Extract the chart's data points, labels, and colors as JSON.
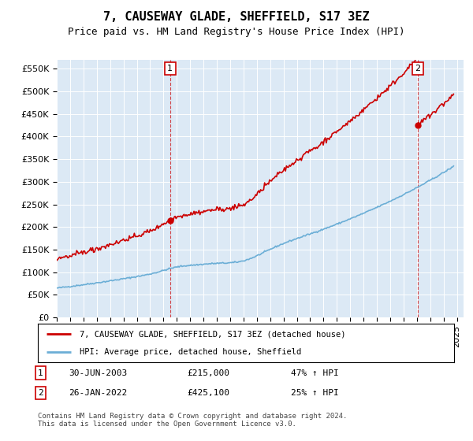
{
  "title": "7, CAUSEWAY GLADE, SHEFFIELD, S17 3EZ",
  "subtitle": "Price paid vs. HM Land Registry's House Price Index (HPI)",
  "ylim": [
    0,
    570000
  ],
  "yticks": [
    0,
    50000,
    100000,
    150000,
    200000,
    250000,
    300000,
    350000,
    400000,
    450000,
    500000,
    550000
  ],
  "ytick_labels": [
    "£0",
    "£50K",
    "£100K",
    "£150K",
    "£200K",
    "£250K",
    "£300K",
    "£350K",
    "£400K",
    "£450K",
    "£500K",
    "£550K"
  ],
  "xlim_start": 1995.0,
  "xlim_end": 2025.5,
  "plot_bg_color": "#dce9f5",
  "line1_color": "#cc0000",
  "line2_color": "#6baed6",
  "sale1_x": 2003.5,
  "sale1_y": 215000,
  "sale2_x": 2022.07,
  "sale2_y": 425100,
  "legend1_text": "7, CAUSEWAY GLADE, SHEFFIELD, S17 3EZ (detached house)",
  "legend2_text": "HPI: Average price, detached house, Sheffield",
  "footer": "Contains HM Land Registry data © Crown copyright and database right 2024.\nThis data is licensed under the Open Government Licence v3.0.",
  "title_fontsize": 11,
  "subtitle_fontsize": 9,
  "tick_fontsize": 8
}
